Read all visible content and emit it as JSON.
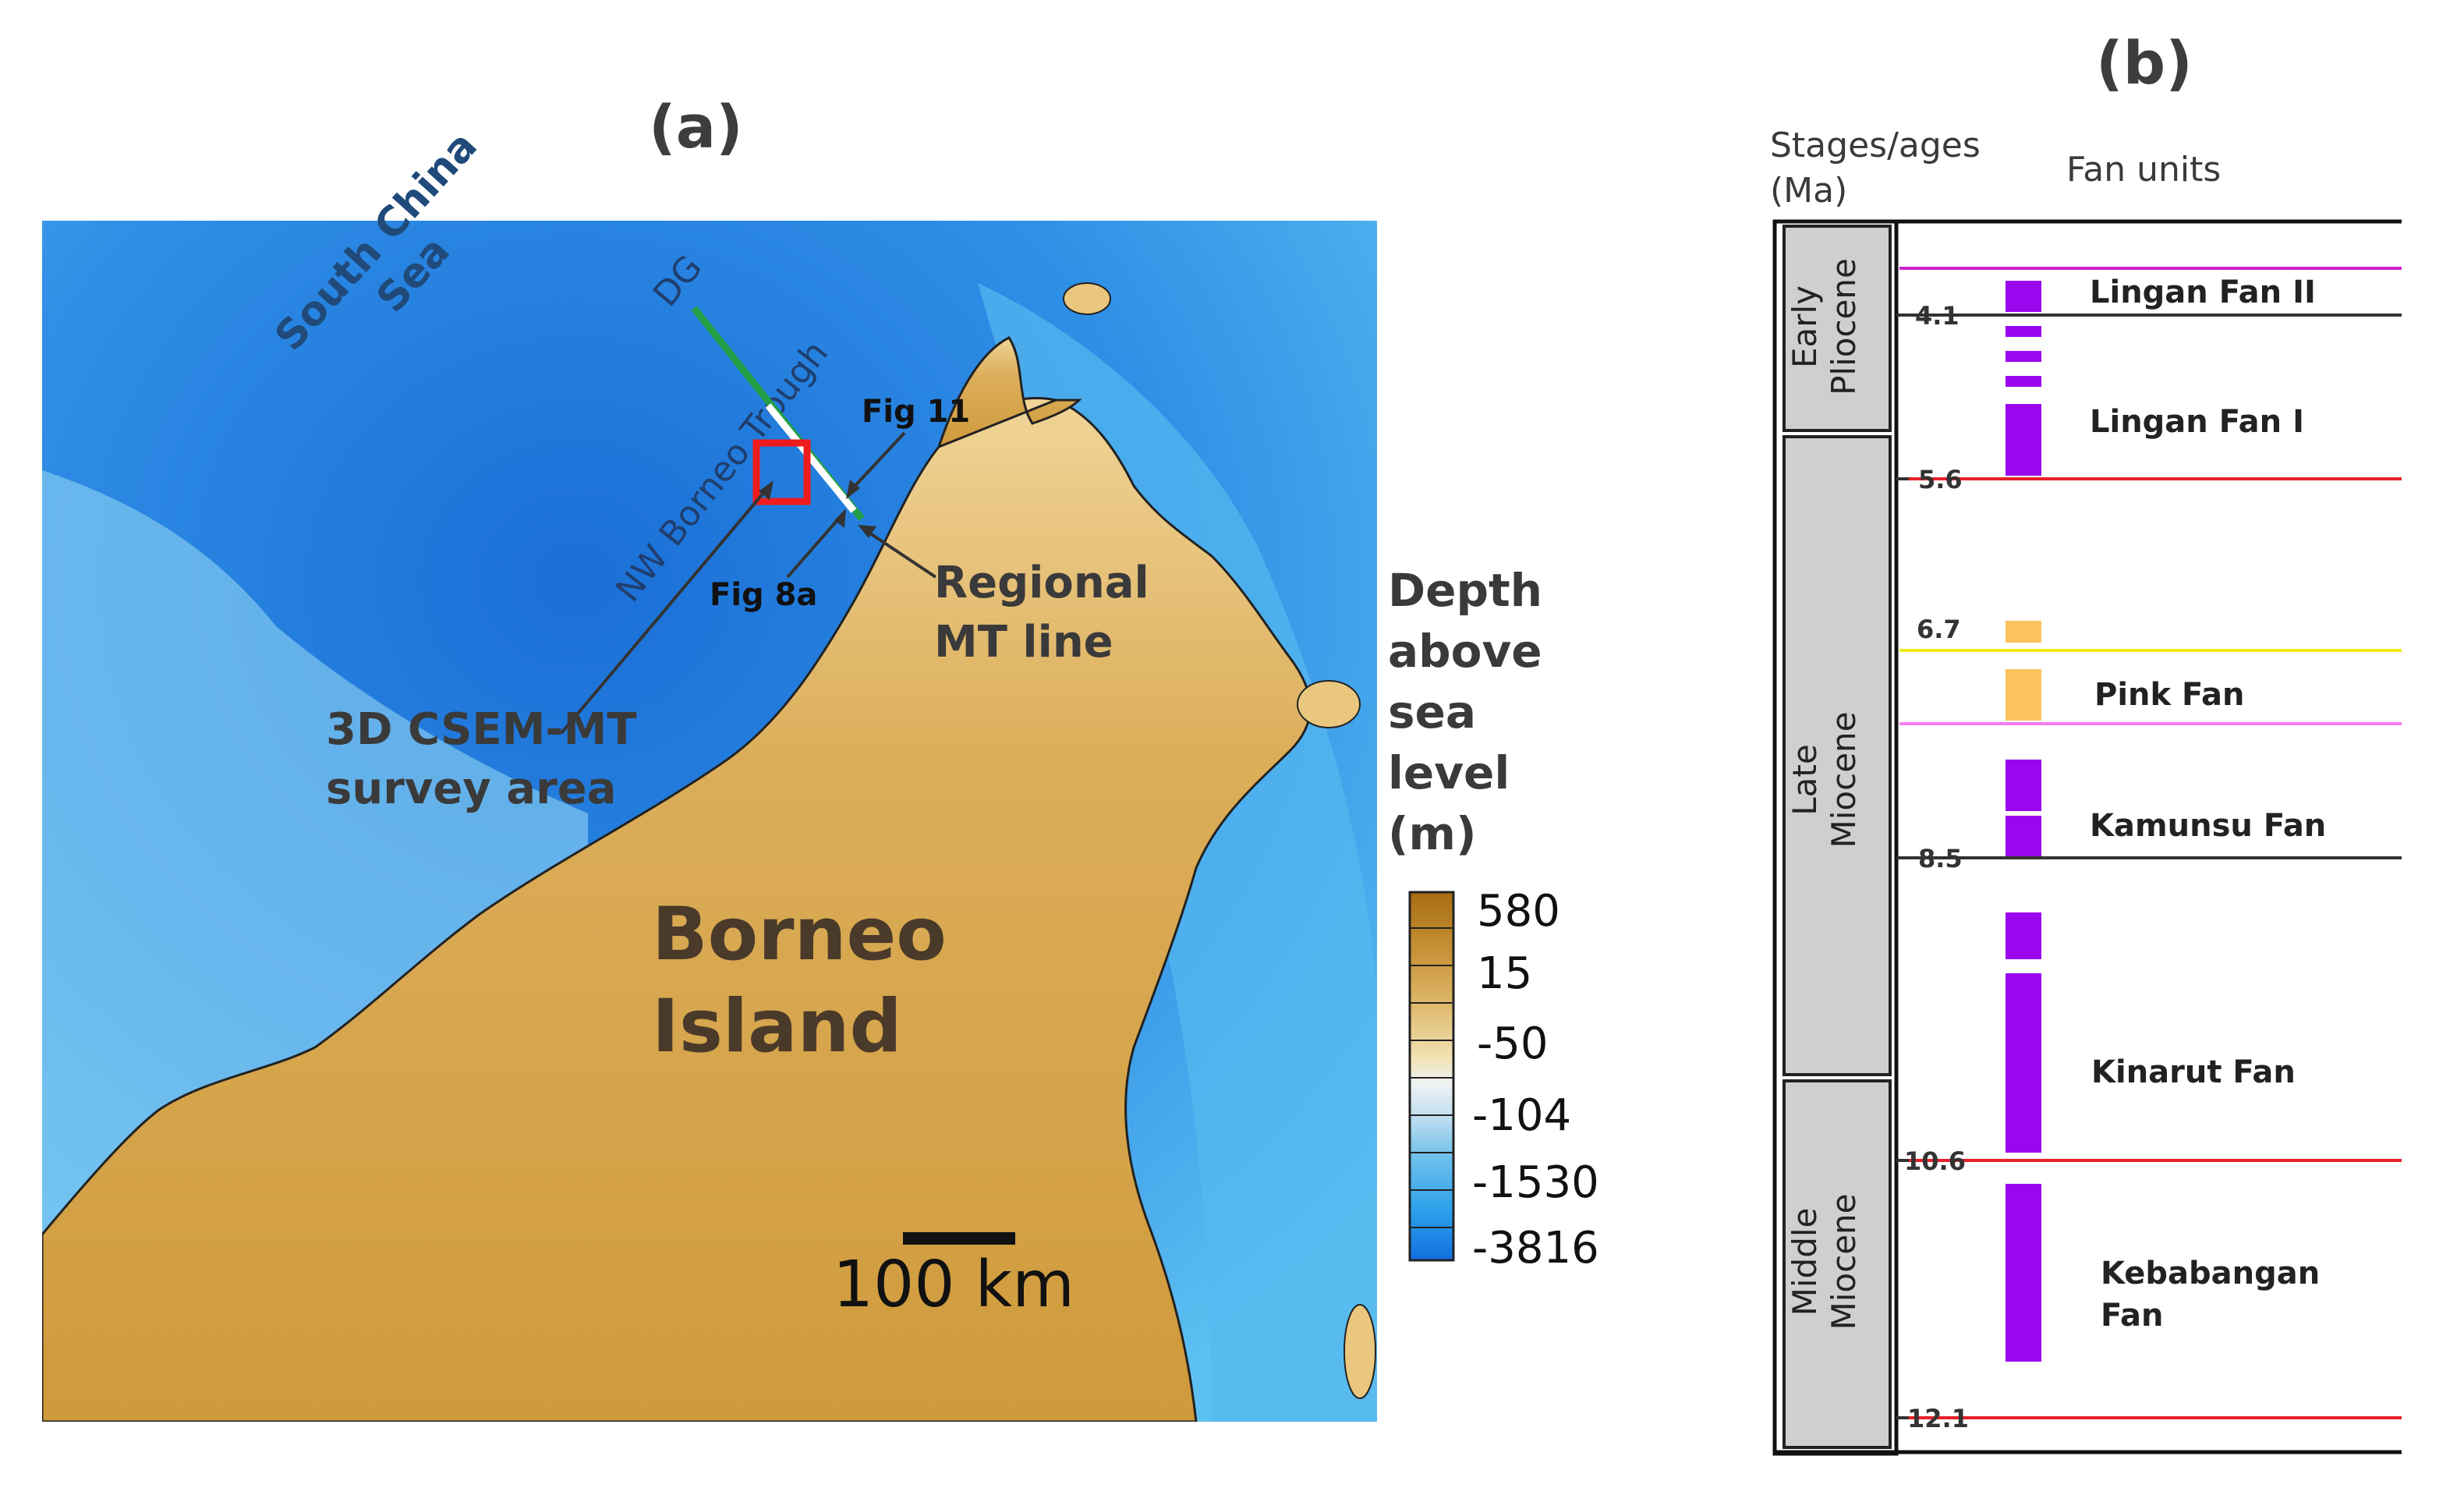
{
  "panel_a": {
    "label": "(a)",
    "map_labels": {
      "south_china_sea_line1": "South China",
      "south_china_sea_line2": "Sea",
      "dg": "DG",
      "trough": "NW Borneo Trough",
      "fig11": "Fig 11",
      "fig8a": "Fig 8a",
      "regional_mt_line1": "Regional",
      "regional_mt_line2": "MT line",
      "survey_line1": "3D CSEM-MT",
      "survey_line2": "survey area",
      "island_line1": "Borneo",
      "island_line2": "Island"
    },
    "scale_bar": {
      "label": "100 km"
    },
    "legend": {
      "title_lines": [
        "Depth",
        "above",
        "sea",
        "level",
        "(m)"
      ],
      "values": [
        "580",
        "15",
        "-50",
        "-104",
        "-1530",
        "-3816"
      ],
      "colors": [
        "#a76d12",
        "#c58f33",
        "#ddb769",
        "#f2e2b4",
        "#dce9ef",
        "#9fd1ea",
        "#4bb0ec",
        "#1c8fe8",
        "#1170e0"
      ]
    },
    "colors": {
      "deep_sea": "#1a6fd6",
      "shallow_sea": "#49b0ee",
      "land": "#d7a64d",
      "survey_box": "#ee1c1c",
      "line_green": "#22a046",
      "line_white": "#ffffff"
    }
  },
  "panel_b": {
    "label": "(b)",
    "header": {
      "col1_line1": "Stages/ages",
      "col1_line2": "(Ma)",
      "col2": "Fan units"
    },
    "stages": [
      {
        "line1": "Early",
        "line2": "Pliocene"
      },
      {
        "line1": "Late",
        "line2": "Miocene"
      },
      {
        "line1": "Middle",
        "line2": "Miocene"
      }
    ],
    "ages": [
      "4.1",
      "5.6",
      "6.7",
      "8.5",
      "10.6",
      "12.1"
    ],
    "fans": [
      "Lingan Fan II",
      "Lingan Fan I",
      "Pink Fan",
      "Kamunsu Fan",
      "Kinarut Fan",
      "Kebabangan",
      "Fan"
    ],
    "colors": {
      "purple": "#9a06ee",
      "orange": "#fbc35d",
      "stage_box": "#cfcfcf",
      "magenta_line": "#cc22cc",
      "red_line": "#e8202a",
      "yellow_line": "#ecec1a",
      "pink_line": "#f57cf0",
      "black_line": "#333333"
    }
  }
}
